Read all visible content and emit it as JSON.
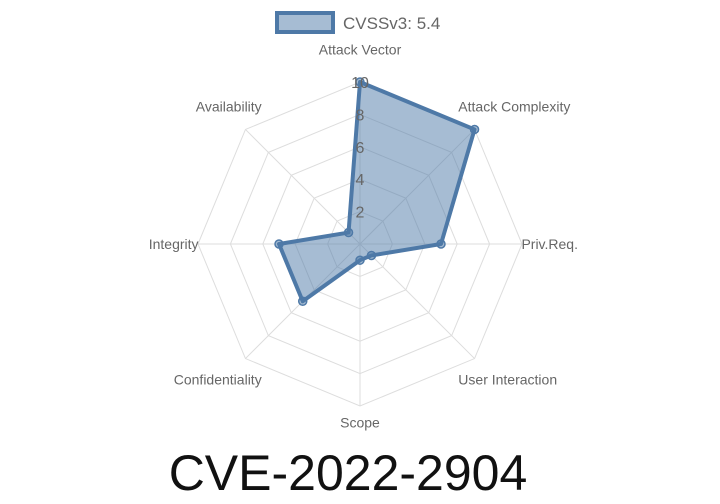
{
  "chart_data": {
    "type": "radar",
    "title": "CVE-2022-2904",
    "axes": [
      "Attack Vector",
      "Attack Complexity",
      "Priv.Req.",
      "User Interaction",
      "Scope",
      "Confidentiality",
      "Integrity",
      "Availability"
    ],
    "series": [
      {
        "name": "CVSSv3: 5.4",
        "values": [
          10,
          10,
          5,
          1,
          1,
          5,
          5,
          1
        ]
      }
    ],
    "rlim": [
      0,
      10
    ],
    "ticks": [
      "2",
      "4",
      "6",
      "8",
      "10"
    ],
    "tick_values": [
      2,
      4,
      6,
      8,
      10
    ],
    "legend": "top",
    "grid": true,
    "colors": {
      "line": "#4e79a7",
      "fill": "#4e79a7",
      "grid": "#dddddd"
    }
  }
}
